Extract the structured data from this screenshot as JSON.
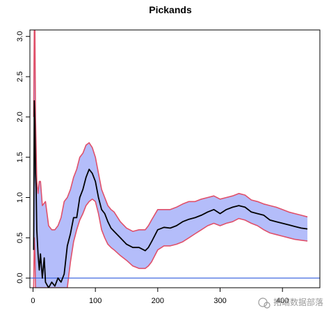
{
  "chart_data": {
    "type": "line",
    "title": "Pickands",
    "xlabel": "",
    "ylabel": "",
    "xlim": [
      -5,
      460
    ],
    "ylim": [
      -0.12,
      3.08
    ],
    "x_ticks": [
      "0",
      "100",
      "200",
      "300",
      "400"
    ],
    "y_ticks": [
      "0.0",
      "0.5",
      "1.0",
      "1.5",
      "2.0",
      "2.5",
      "3.0"
    ],
    "reference_line": {
      "y": 0,
      "color": "#4169e1"
    },
    "colors": {
      "estimate": "#000000",
      "band_fill": "#b4bdfa",
      "band_edge": "#e0506a"
    },
    "series": [
      {
        "role": "estimate",
        "x": [
          1,
          2,
          3,
          4,
          5,
          6,
          8,
          10,
          12,
          15,
          18,
          20,
          25,
          30,
          35,
          40,
          45,
          50,
          55,
          60,
          65,
          70,
          75,
          80,
          85,
          90,
          95,
          100,
          105,
          110,
          115,
          120,
          125,
          130,
          140,
          150,
          160,
          170,
          180,
          185,
          190,
          200,
          210,
          220,
          230,
          240,
          250,
          260,
          270,
          280,
          290,
          300,
          310,
          320,
          330,
          340,
          350,
          360,
          370,
          380,
          390,
          400,
          410,
          420,
          430,
          440
        ],
        "y": [
          0.35,
          2.2,
          1.9,
          1.3,
          1.1,
          0.6,
          0.3,
          0.1,
          0.3,
          0.0,
          0.25,
          -0.05,
          -0.12,
          -0.05,
          -0.1,
          0.0,
          -0.05,
          0.05,
          0.4,
          0.55,
          0.75,
          0.75,
          1.0,
          1.1,
          1.25,
          1.35,
          1.3,
          1.2,
          1.0,
          0.85,
          0.8,
          0.7,
          0.62,
          0.58,
          0.5,
          0.42,
          0.38,
          0.38,
          0.34,
          0.38,
          0.45,
          0.6,
          0.63,
          0.62,
          0.65,
          0.7,
          0.73,
          0.75,
          0.78,
          0.82,
          0.85,
          0.8,
          0.85,
          0.88,
          0.9,
          0.88,
          0.82,
          0.8,
          0.78,
          0.72,
          0.7,
          0.68,
          0.66,
          0.64,
          0.62,
          0.61
        ]
      },
      {
        "role": "upper",
        "x": [
          1,
          2,
          3,
          4,
          6,
          8,
          10,
          12,
          15,
          20,
          25,
          30,
          35,
          40,
          45,
          50,
          55,
          60,
          65,
          70,
          75,
          80,
          85,
          90,
          95,
          100,
          105,
          110,
          115,
          120,
          125,
          130,
          140,
          150,
          160,
          170,
          180,
          185,
          190,
          200,
          210,
          220,
          230,
          240,
          250,
          260,
          270,
          280,
          290,
          300,
          310,
          320,
          330,
          340,
          350,
          360,
          370,
          380,
          390,
          400,
          410,
          420,
          430,
          440
        ],
        "y": [
          2.0,
          3.08,
          3.08,
          2.0,
          1.2,
          1.05,
          1.2,
          1.2,
          0.9,
          0.95,
          0.65,
          0.6,
          0.6,
          0.65,
          0.75,
          0.95,
          1.0,
          1.1,
          1.25,
          1.35,
          1.5,
          1.55,
          1.65,
          1.68,
          1.62,
          1.5,
          1.3,
          1.1,
          1.0,
          0.9,
          0.85,
          0.82,
          0.7,
          0.62,
          0.58,
          0.6,
          0.6,
          0.65,
          0.72,
          0.85,
          0.85,
          0.85,
          0.88,
          0.92,
          0.95,
          0.95,
          0.98,
          1.0,
          1.02,
          0.98,
          1.0,
          1.02,
          1.05,
          1.03,
          0.97,
          0.95,
          0.92,
          0.9,
          0.88,
          0.85,
          0.82,
          0.8,
          0.78,
          0.76
        ]
      },
      {
        "role": "lower",
        "x": [
          1,
          2,
          3,
          4,
          6,
          8,
          10,
          15,
          20,
          25,
          30,
          35,
          40,
          45,
          50,
          55,
          60,
          65,
          70,
          75,
          80,
          85,
          90,
          95,
          100,
          105,
          110,
          115,
          120,
          125,
          130,
          140,
          150,
          160,
          170,
          180,
          185,
          190,
          200,
          210,
          220,
          230,
          240,
          250,
          260,
          270,
          280,
          290,
          300,
          310,
          320,
          330,
          340,
          350,
          360,
          370,
          380,
          390,
          400,
          410,
          420,
          430,
          440
        ],
        "y": [
          -0.12,
          0.5,
          0.3,
          -0.12,
          -0.12,
          -0.12,
          -0.12,
          -0.12,
          -0.12,
          -0.12,
          -0.12,
          -0.12,
          -0.12,
          -0.12,
          -0.12,
          -0.12,
          0.2,
          0.45,
          0.6,
          0.72,
          0.8,
          0.9,
          0.95,
          0.98,
          0.95,
          0.8,
          0.6,
          0.5,
          0.42,
          0.38,
          0.35,
          0.28,
          0.22,
          0.15,
          0.12,
          0.12,
          0.15,
          0.2,
          0.35,
          0.4,
          0.4,
          0.42,
          0.45,
          0.5,
          0.55,
          0.6,
          0.65,
          0.68,
          0.65,
          0.68,
          0.7,
          0.74,
          0.72,
          0.68,
          0.65,
          0.6,
          0.56,
          0.54,
          0.52,
          0.5,
          0.48,
          0.47,
          0.46
        ]
      }
    ]
  },
  "watermark": {
    "text": "拓端数据部落"
  }
}
